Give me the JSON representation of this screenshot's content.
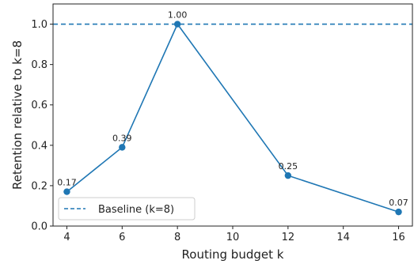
{
  "chart_data": {
    "type": "line",
    "title": "",
    "xlabel": "Routing budget k",
    "ylabel": "Retention relative to k=8",
    "xlim": [
      3.5,
      16.5
    ],
    "ylim": [
      0.0,
      1.1
    ],
    "xticks": [
      4,
      6,
      8,
      10,
      12,
      14,
      16
    ],
    "yticks": [
      0.0,
      0.2,
      0.4,
      0.6,
      0.8,
      1.0
    ],
    "xtick_labels": [
      "4",
      "6",
      "8",
      "10",
      "12",
      "14",
      "16"
    ],
    "ytick_labels": [
      "0.0",
      "0.2",
      "0.4",
      "0.6",
      "0.8",
      "1.0"
    ],
    "grid": false,
    "legend_position": "lower-left",
    "series": [
      {
        "x": [
          4,
          6,
          8,
          12,
          16
        ],
        "values": [
          0.17,
          0.39,
          1.0,
          0.25,
          0.07
        ],
        "data_labels": [
          "0.17",
          "0.39",
          "1.00",
          "0.25",
          "0.07"
        ],
        "color": "#1f77b4",
        "marker": "circle"
      }
    ],
    "reference_lines": [
      {
        "name": "Baseline (k=8)",
        "y": 1.0,
        "style": "dashed",
        "color": "#1f77b4"
      }
    ]
  }
}
